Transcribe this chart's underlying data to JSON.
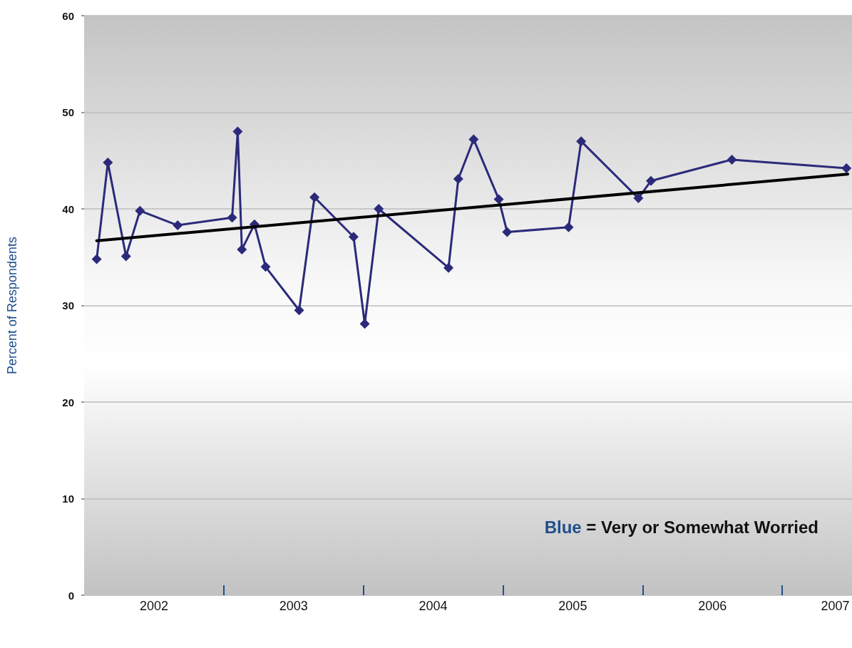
{
  "chart_data": {
    "type": "line",
    "ylabel": "Percent of Respondents",
    "x": [
      2002.09,
      2002.17,
      2002.3,
      2002.4,
      2002.67,
      2003.06,
      2003.1,
      2003.13,
      2003.22,
      2003.3,
      2003.54,
      2003.65,
      2003.93,
      2004.01,
      2004.11,
      2004.61,
      2004.68,
      2004.79,
      2004.97,
      2005.03,
      2005.47,
      2005.56,
      2005.97,
      2006.06,
      2006.64,
      2007.46
    ],
    "series": [
      {
        "color": "#2b2a7a",
        "values": [
          34.8,
          44.8,
          35.1,
          39.8,
          38.3,
          39.1,
          48.0,
          35.8,
          38.4,
          34.0,
          29.5,
          41.2,
          37.1,
          28.1,
          40.0,
          33.9,
          43.1,
          47.2,
          41.0,
          37.6,
          38.1,
          47.0,
          41.1,
          42.9,
          45.1,
          44.2
        ]
      },
      {
        "type": "line",
        "color": "#000000",
        "marker": "none",
        "x": [
          2002.09,
          2007.47
        ],
        "values": [
          36.7,
          43.6
        ]
      }
    ],
    "xlim": [
      2002,
      2007.5
    ],
    "xticks": [
      {
        "value": 2002.5,
        "label": "2002"
      },
      {
        "value": 2003,
        "label": null
      },
      {
        "value": 2003.5,
        "label": "2003"
      },
      {
        "value": 2004,
        "label": null
      },
      {
        "value": 2004.5,
        "label": "2004"
      },
      {
        "value": 2005,
        "label": null
      },
      {
        "value": 2005.5,
        "label": "2005"
      },
      {
        "value": 2006,
        "label": null
      },
      {
        "value": 2006.5,
        "label": "2006"
      },
      {
        "value": 2007,
        "label": null
      },
      {
        "value": 2007.38,
        "label": "2007"
      }
    ],
    "ylim": [
      0,
      60
    ],
    "yticks": [
      0,
      10,
      20,
      30,
      40,
      50,
      60
    ],
    "grid": "y",
    "marker": "diamond",
    "line_style": "solid",
    "annotations": [
      "Blue = Very or Somewhat Worried"
    ]
  }
}
